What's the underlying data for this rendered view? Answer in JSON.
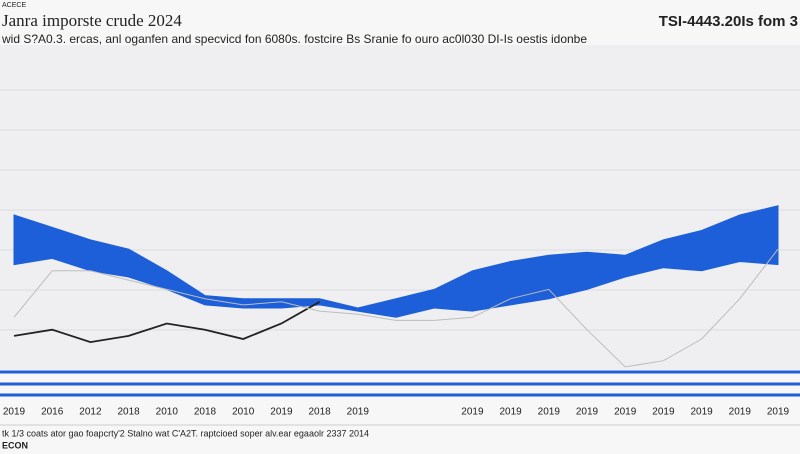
{
  "chart_data": {
    "type": "area",
    "corner_label": "ACECE",
    "title": "Janra imporste crude 2024",
    "top_right": "TSI-4443.20Is fom 3",
    "subtitle": "wid S?A0.3. ercas, anl oganfen and specvicd fon 6080s. fostcire Bs Sranie fo ouro ac0l030 DI-Is oestis idonbe",
    "footnote": "tk 1/3 coats ator gao foapcrty'2 Stalno wat C'A2T. raptcioed soper alv.ear egaaolr 2337 2014",
    "source": "ECON",
    "categories": [
      "2019",
      "2016",
      "2012",
      "2018",
      "2010",
      "2018",
      "2010",
      "2019",
      "2018",
      "2019",
      null,
      null,
      "2019",
      "2019",
      "2019",
      "2019",
      "2019",
      "2019",
      "2019",
      "2019",
      "2019"
    ],
    "ylim": [
      0,
      100
    ],
    "series": [
      {
        "color": "#1d5fd8",
        "values": [
          50,
          46,
          42,
          39,
          32,
          24,
          23,
          23,
          23,
          20,
          23,
          26,
          32,
          35,
          37,
          38,
          37,
          42,
          45,
          50,
          53
        ]
      },
      {
        "color": "#1d5fd8",
        "values": [
          34,
          36,
          32,
          30,
          26,
          21,
          20,
          20,
          21,
          19,
          17,
          20,
          19,
          21,
          23,
          26,
          30,
          33,
          32,
          35,
          34
        ]
      },
      {
        "color": "#222222",
        "values": [
          11,
          13,
          9,
          11,
          15,
          13,
          10,
          15,
          22,
          null,
          null,
          null,
          null,
          null,
          null,
          null,
          null,
          null,
          null,
          null,
          null
        ]
      },
      {
        "color": "#bdbdbd",
        "values": [
          17,
          32,
          32,
          29,
          26,
          23,
          21,
          22,
          19,
          18,
          16,
          16,
          17,
          23,
          26,
          13,
          1,
          3,
          10,
          23,
          39
        ]
      }
    ]
  }
}
